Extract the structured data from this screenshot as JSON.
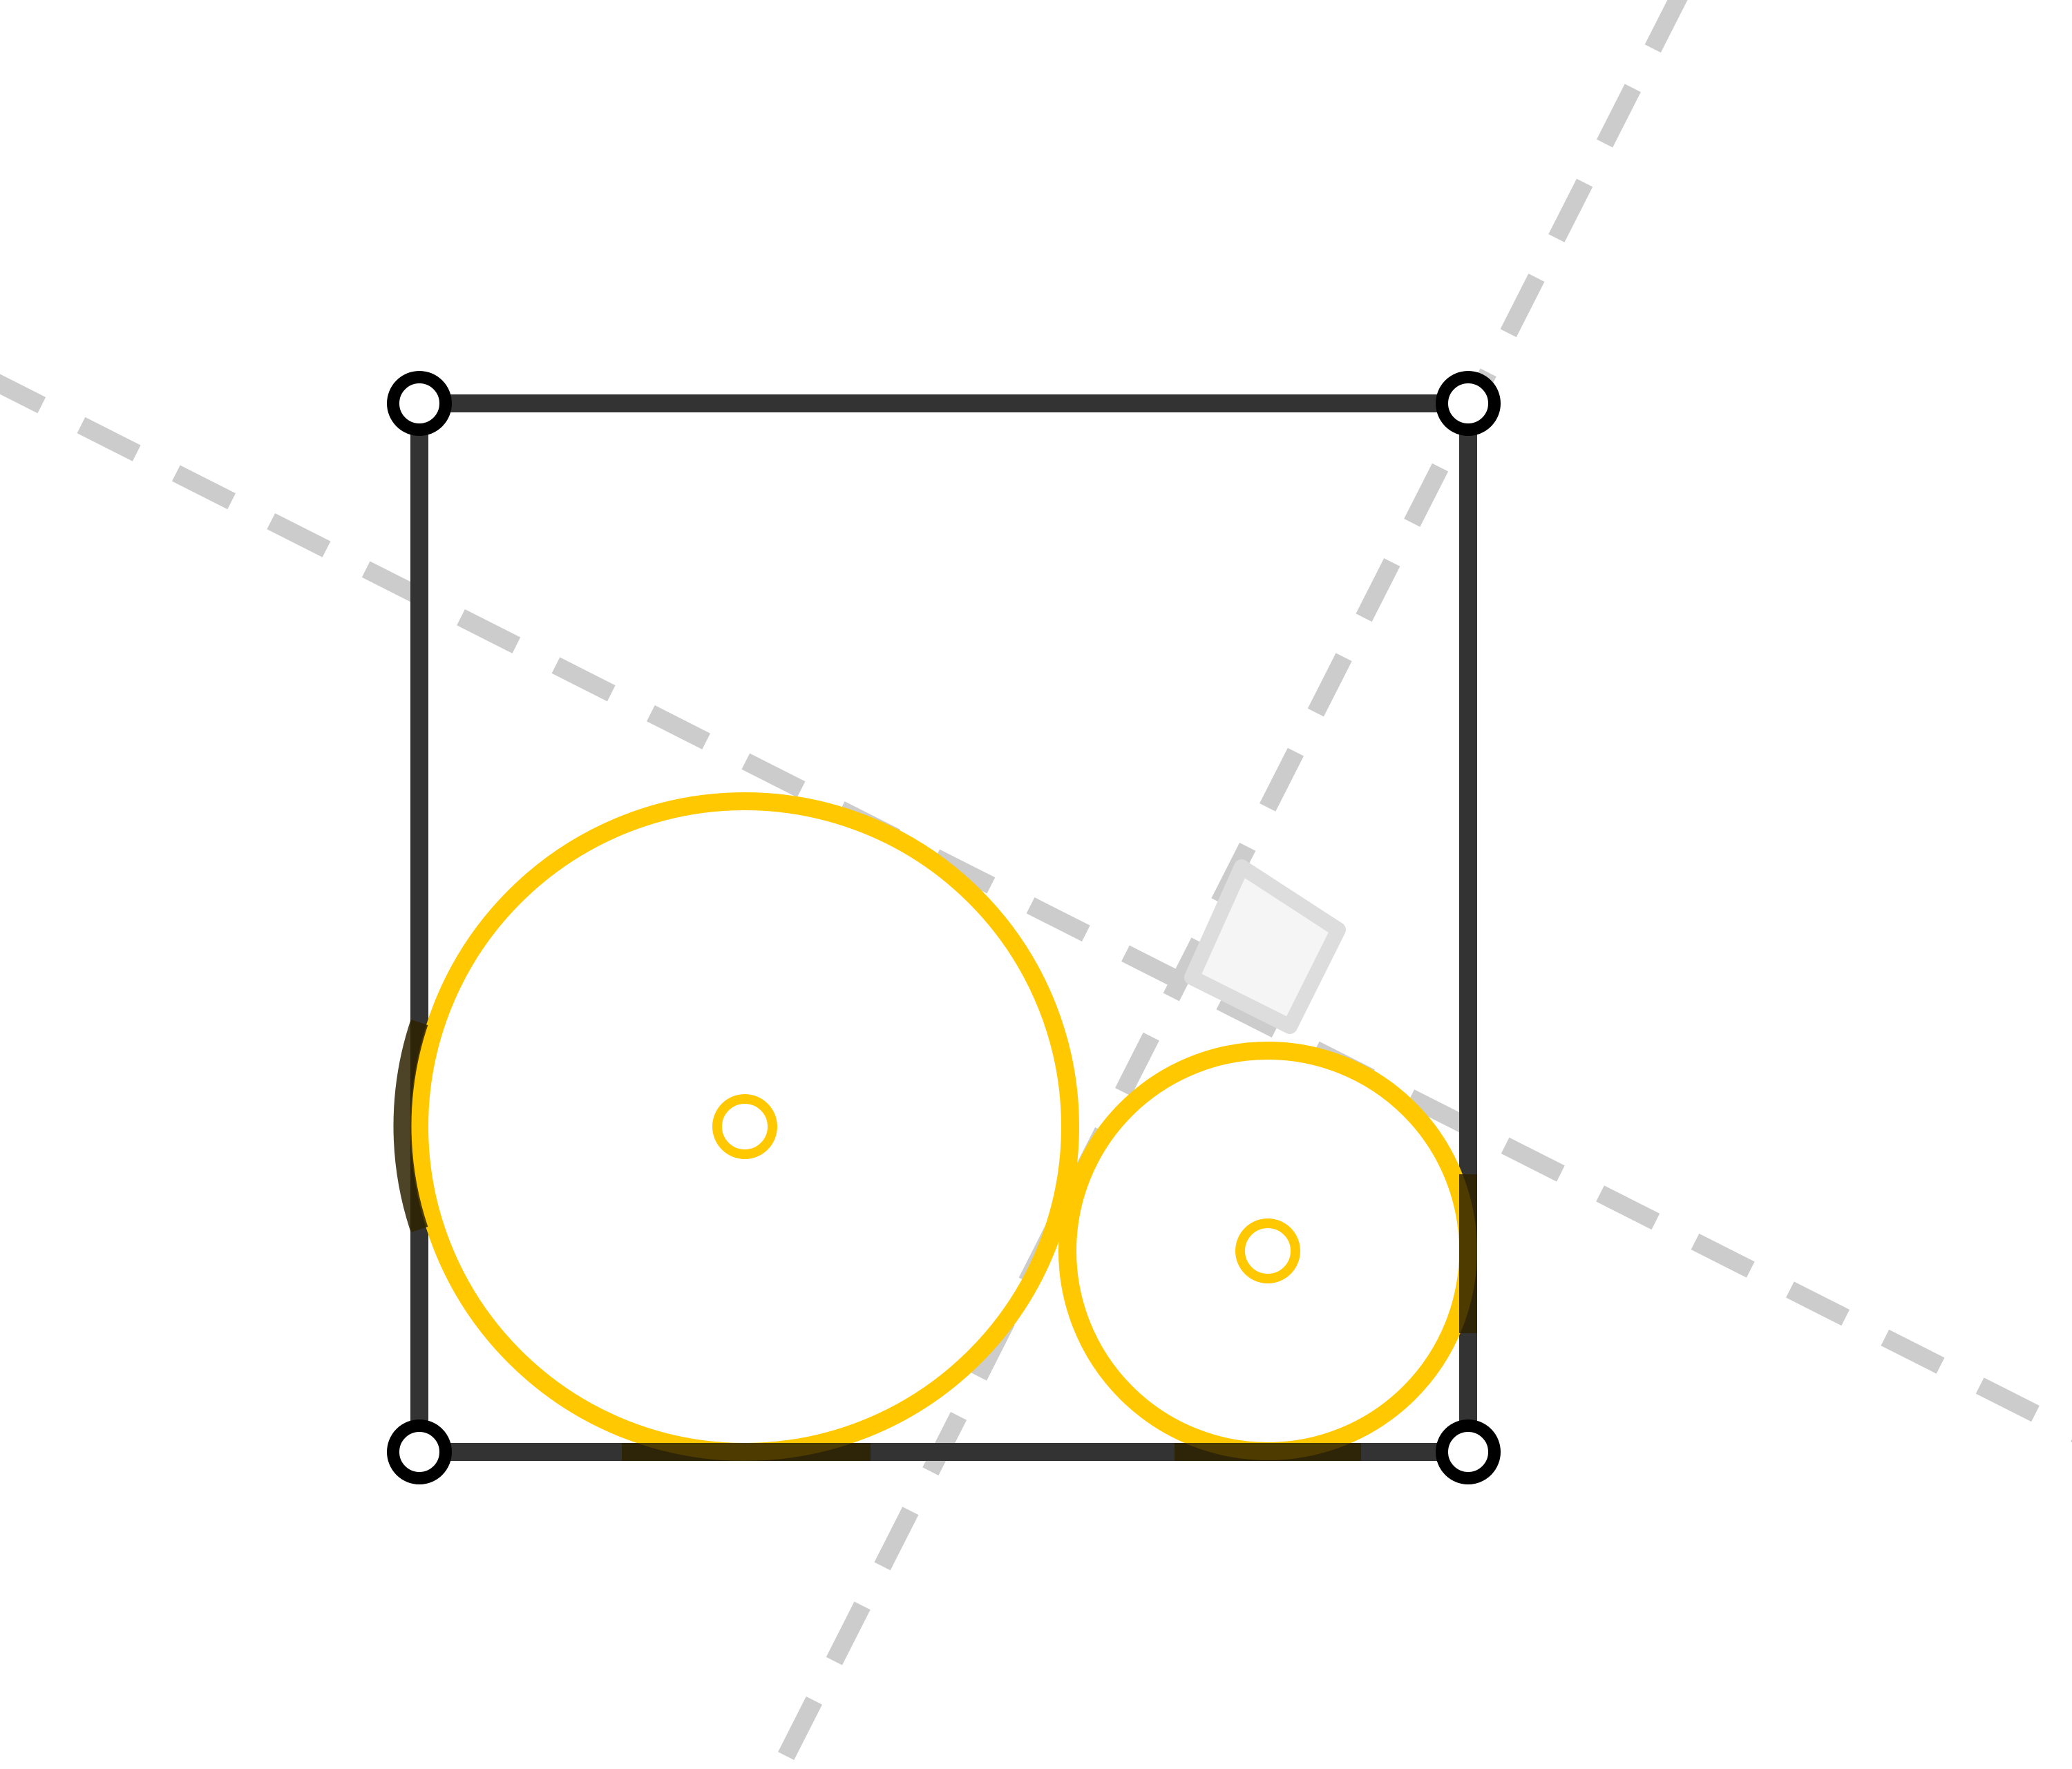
{
  "figure": {
    "shape": "square-with-two-tangent-circles",
    "colors": {
      "background": "#ffffff",
      "square_edge": "#333333",
      "vertex_stroke": "#000000",
      "vertex_fill": "#ffffff",
      "construction_line": "#cccccc",
      "right_angle_fill": "#f5f5f5",
      "right_angle_stroke": "#dddddd",
      "circle": "#ffc800",
      "circle_overlap_shadow": "#2e2200"
    },
    "elements": {
      "vertices": 4,
      "circles": 2,
      "construction_lines": 2,
      "right_angle_marker": true
    }
  }
}
